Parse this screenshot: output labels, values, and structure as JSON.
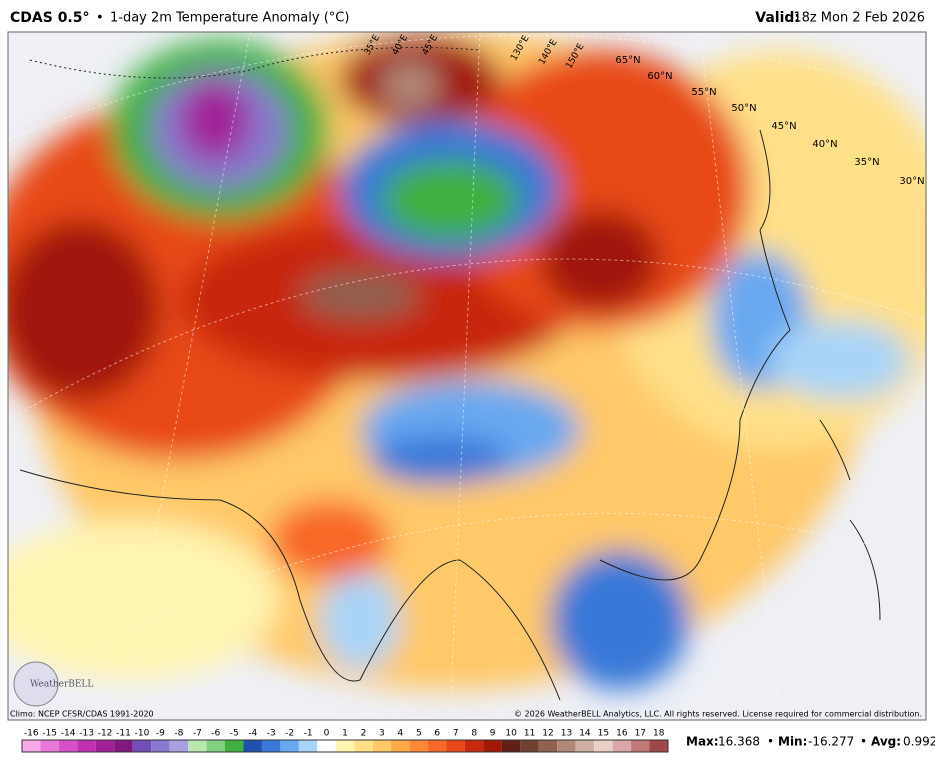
{
  "header": {
    "model": "CDAS 0.5°",
    "separator": "•",
    "title": "1-day 2m Temperature Anomaly (°C)",
    "valid_label": "Valid:",
    "valid_time": "18z Mon 2 Feb 2026"
  },
  "map": {
    "lat_labels": [
      "65°N",
      "60°N",
      "55°N",
      "50°N",
      "45°N",
      "40°N",
      "35°N",
      "30°N"
    ],
    "lon_labels": [
      "35°E",
      "40°E",
      "45°E",
      "130°E",
      "140°E",
      "150°E"
    ],
    "logo": "WeatherBELL"
  },
  "footer": {
    "climo": "Climo: NCEP CFSR/CDAS 1991-2020",
    "copyright": "© 2026 WeatherBELL Analytics, LLC. All rights reserved. License required for commercial distribution."
  },
  "colorbar": {
    "ticks": [
      -16,
      -15,
      -14,
      -13,
      -12,
      -11,
      -10,
      -9,
      -8,
      -7,
      -6,
      -5,
      -4,
      -3,
      -2,
      -1,
      0,
      1,
      2,
      3,
      4,
      5,
      6,
      7,
      8,
      9,
      10,
      11,
      12,
      13,
      14,
      15,
      16,
      17,
      18
    ],
    "colors": [
      "#f4a8e8",
      "#e878d8",
      "#d850c8",
      "#c030b0",
      "#a02098",
      "#801880",
      "#7050b8",
      "#8878d0",
      "#a8a0e0",
      "#b8e8b0",
      "#80d080",
      "#40b040",
      "#2050b0",
      "#3878d8",
      "#68a8f0",
      "#a8d4f8",
      "#ffffff",
      "#fff4b0",
      "#ffe088",
      "#ffc868",
      "#ffa848",
      "#ff8838",
      "#f86828",
      "#e84818",
      "#c82810",
      "#a01808",
      "#602018",
      "#704030",
      "#906050",
      "#b08878",
      "#d0b0a0",
      "#e8d0c8",
      "#d8a8a8",
      "#c07878",
      "#a04848"
    ]
  },
  "stats": {
    "max_label": "Max:",
    "max": "16.368",
    "min_label": "Min:",
    "min": "-16.277",
    "avg_label": "Avg:",
    "avg": "0.992",
    "separator": "•"
  }
}
